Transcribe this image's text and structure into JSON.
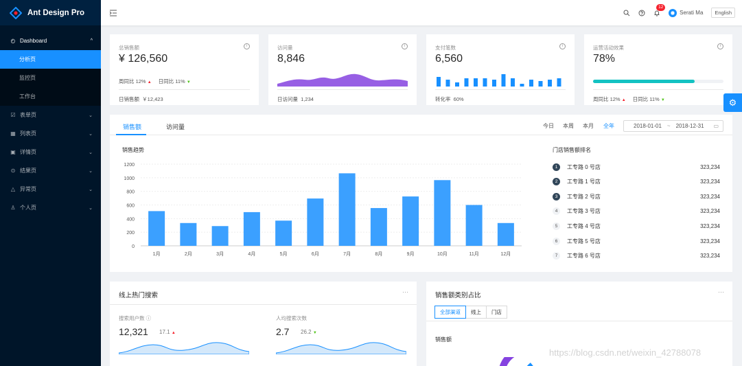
{
  "app": {
    "title": "Ant Design Pro"
  },
  "sidebar": {
    "items": [
      {
        "label": "Dashboard",
        "icon": "dashboard-icon",
        "open": true,
        "children": [
          {
            "label": "分析页",
            "active": true
          },
          {
            "label": "监控页"
          },
          {
            "label": "工作台"
          }
        ]
      },
      {
        "label": "表单页",
        "icon": "form-icon"
      },
      {
        "label": "列表页",
        "icon": "table-icon"
      },
      {
        "label": "详情页",
        "icon": "profile-icon"
      },
      {
        "label": "结果页",
        "icon": "check-circle-icon"
      },
      {
        "label": "异常页",
        "icon": "warning-icon"
      },
      {
        "label": "个人页",
        "icon": "user-icon"
      }
    ]
  },
  "header": {
    "notification_count": "12",
    "user_name": "Serati Ma",
    "language": "English"
  },
  "stats": [
    {
      "label": "总销售额",
      "value": "¥ 126,560",
      "week_label": "周同比",
      "week_value": "12%",
      "day_label": "日同比",
      "day_value": "11%",
      "footer_label": "日销售额",
      "footer_value": "￥12,423"
    },
    {
      "label": "访问量",
      "value": "8,846",
      "footer_label": "日访问量",
      "footer_value": "1,234"
    },
    {
      "label": "支付笔数",
      "value": "6,560",
      "footer_label": "转化率",
      "footer_value": "60%"
    },
    {
      "label": "运营活动效果",
      "value": "78%",
      "progress": 0.78,
      "week_label": "周同比",
      "week_value": "12%",
      "day_label": "日同比",
      "day_value": "11%"
    }
  ],
  "sales": {
    "tabs": [
      "销售额",
      "访问量"
    ],
    "ranges": [
      "今日",
      "本周",
      "本月",
      "全年"
    ],
    "date_start": "2018-01-01",
    "date_sep": "~",
    "date_end": "2018-12-31",
    "trend_title": "销售趋势",
    "rank_title": "门店销售额排名",
    "ranking": [
      {
        "no": "1",
        "name": "工专路 0 号店",
        "value": "323,234"
      },
      {
        "no": "2",
        "name": "工专路 1 号店",
        "value": "323,234"
      },
      {
        "no": "3",
        "name": "工专路 2 号店",
        "value": "323,234"
      },
      {
        "no": "4",
        "name": "工专路 3 号店",
        "value": "323,234"
      },
      {
        "no": "5",
        "name": "工专路 4 号店",
        "value": "323,234"
      },
      {
        "no": "6",
        "name": "工专路 5 号店",
        "value": "323,234"
      },
      {
        "no": "7",
        "name": "工专路 6 号店",
        "value": "323,234"
      }
    ]
  },
  "chart_data": [
    {
      "type": "bar",
      "title": "销售趋势",
      "categories": [
        "1月",
        "2月",
        "3月",
        "4月",
        "5月",
        "6月",
        "7月",
        "8月",
        "9月",
        "10月",
        "11月",
        "12月"
      ],
      "values": [
        510,
        335,
        290,
        495,
        370,
        695,
        1065,
        555,
        725,
        965,
        600,
        335
      ],
      "ylim": [
        0,
        1200
      ],
      "yticks": [
        0,
        200,
        400,
        600,
        800,
        1000,
        1200
      ],
      "color": "#3ba0ff"
    }
  ],
  "search_card": {
    "title": "线上热门搜索",
    "more": "···",
    "users_label": "搜索用户数",
    "users_value": "12,321",
    "users_change": "17.1",
    "avg_label": "人均搜索次数",
    "avg_value": "2.7",
    "avg_change": "26.2"
  },
  "category_card": {
    "title": "销售额类别占比",
    "more": "···",
    "segments": [
      "全部渠道",
      "线上",
      "门店"
    ],
    "sub_title": "销售额"
  },
  "watermark": "https://blog.csdn.net/weixin_42788078"
}
